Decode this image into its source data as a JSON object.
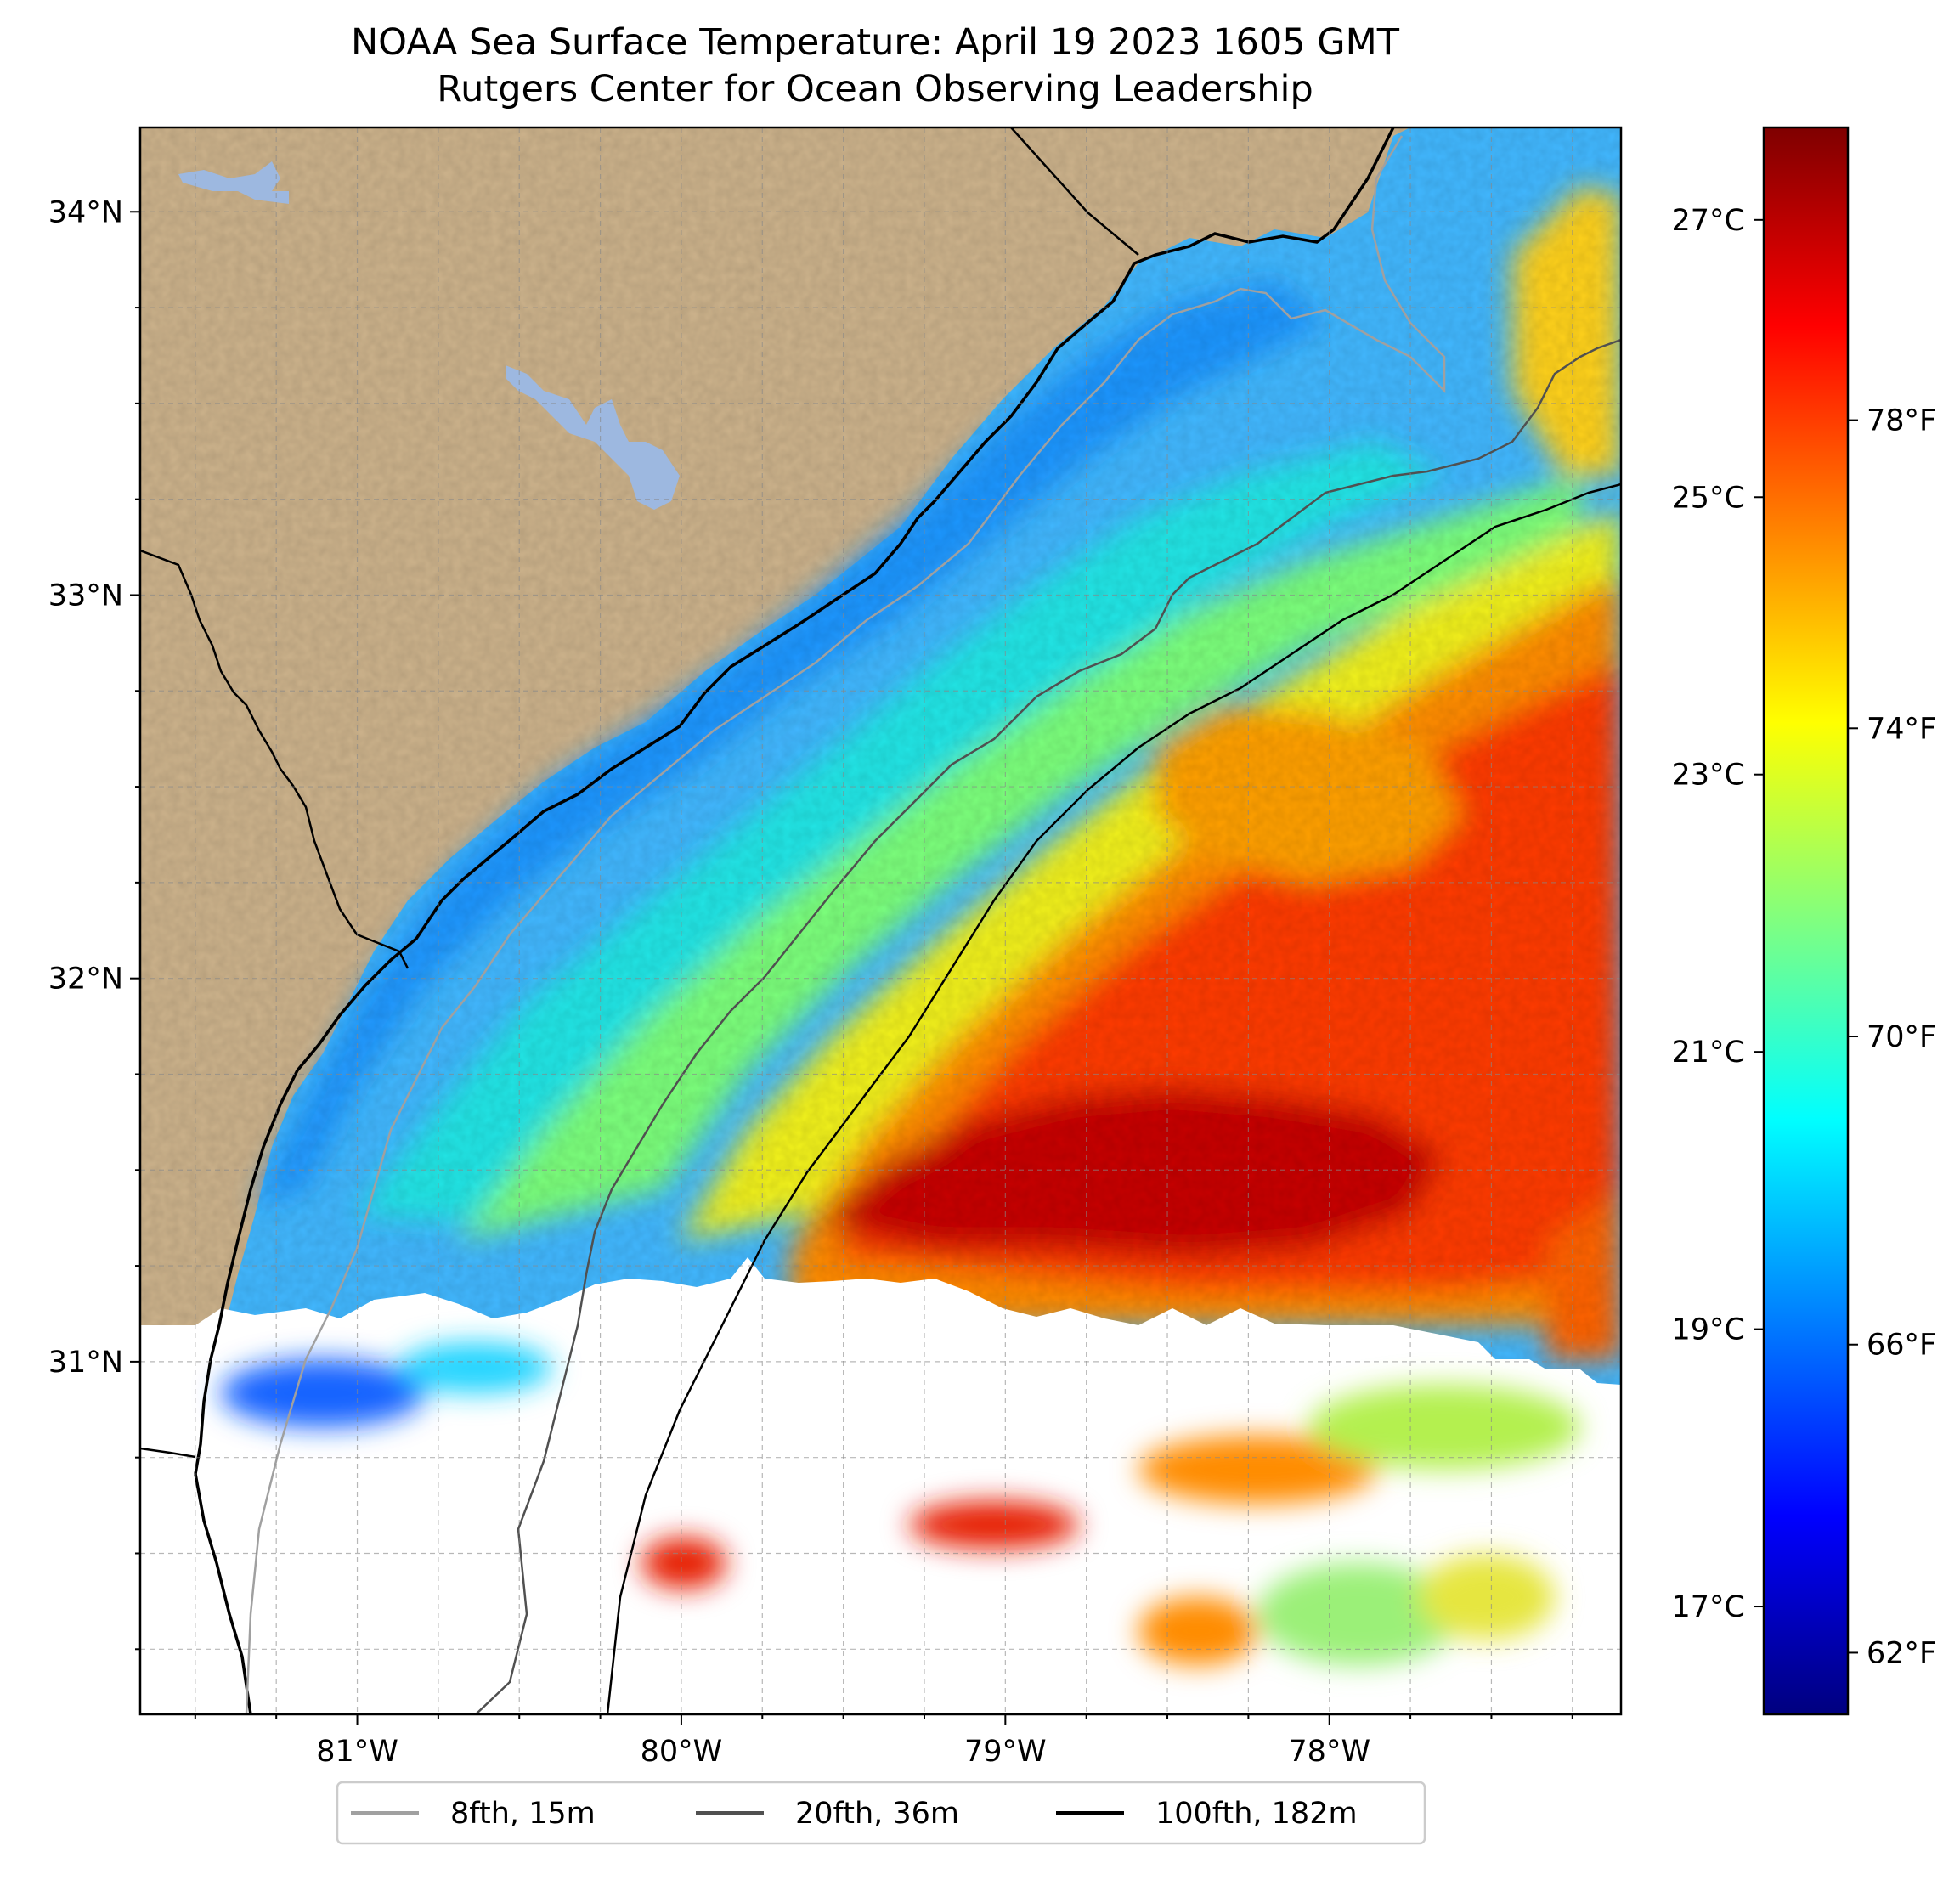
{
  "title": {
    "line1": "NOAA Sea Surface Temperature: April 19 2023 1605 GMT",
    "line2": "Rutgers Center for Ocean Observing Leadership"
  },
  "colors": {
    "land": "#CDB38C",
    "water_body": "#9DB8E0",
    "cloud_mask": "#FFFFFF",
    "isobath_8fth": "#A0A0A0",
    "isobath_20fth": "#505050",
    "isobath_100fth": "#000000",
    "colormap": "jet"
  },
  "map": {
    "lon_range": [
      -81.67,
      -77.1
    ],
    "lat_range": [
      30.08,
      34.22
    ],
    "x_ticks": [
      {
        "lon": -81,
        "label": "81°W"
      },
      {
        "lon": -80,
        "label": "80°W"
      },
      {
        "lon": -79,
        "label": "79°W"
      },
      {
        "lon": -78,
        "label": "78°W"
      }
    ],
    "y_ticks": [
      {
        "lat": 34,
        "label": "34°N"
      },
      {
        "lat": 33,
        "label": "33°N"
      },
      {
        "lat": 32,
        "label": "32°N"
      },
      {
        "lat": 31,
        "label": "31°N"
      }
    ],
    "grid": "dashed, every 0.25°"
  },
  "colorbar": {
    "range_f": [
      61.2,
      81.8
    ],
    "celsius_ticks": [
      {
        "c": 27,
        "label": "27°C"
      },
      {
        "c": 25,
        "label": "25°C"
      },
      {
        "c": 23,
        "label": "23°C"
      },
      {
        "c": 21,
        "label": "21°C"
      },
      {
        "c": 19,
        "label": "19°C"
      },
      {
        "c": 17,
        "label": "17°C"
      }
    ],
    "fahrenheit_ticks": [
      {
        "f": 78,
        "label": "78°F"
      },
      {
        "f": 74,
        "label": "74°F"
      },
      {
        "f": 70,
        "label": "70°F"
      },
      {
        "f": 66,
        "label": "66°F"
      },
      {
        "f": 62,
        "label": "62°F"
      }
    ]
  },
  "legend": {
    "placement": "bottom-center",
    "items": [
      {
        "label": "8fth, 15m",
        "color": "#A0A0A0"
      },
      {
        "label": "20fth, 36m",
        "color": "#505050"
      },
      {
        "label": "100fth, 182m",
        "color": "#000000"
      }
    ]
  }
}
